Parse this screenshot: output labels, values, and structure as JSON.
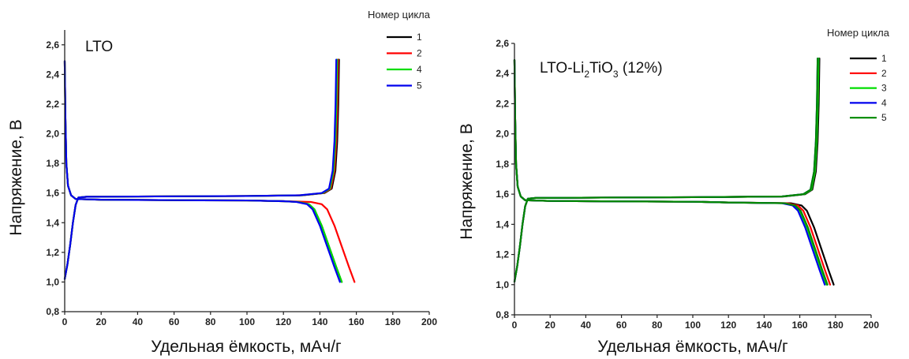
{
  "chart_data": [
    {
      "type": "line",
      "annotation": "LTO",
      "xlabel": "Удельная ёмкость, мАч/г",
      "ylabel": "Напряжение, В",
      "xlim": [
        0,
        200
      ],
      "ylim": [
        0.8,
        2.7
      ],
      "x_ticks": [
        "0",
        "20",
        "40",
        "60",
        "80",
        "100",
        "120",
        "140",
        "160",
        "180",
        "200"
      ],
      "y_ticks": [
        "0,8",
        "1,0",
        "1,2",
        "1,4",
        "1,6",
        "1,8",
        "2,0",
        "2,2",
        "2,4",
        "2,6"
      ],
      "legend_title": "Номер цикла",
      "legend_position": "top-right",
      "series": [
        {
          "name": "1",
          "color": "#000000",
          "discharge_end": 152,
          "charge_end": 150.5
        },
        {
          "name": "2",
          "color": "#ff0000",
          "discharge_end": 159,
          "charge_end": 150
        },
        {
          "name": "4",
          "color": "#00dd00",
          "discharge_end": 152,
          "charge_end": 149.5
        },
        {
          "name": "5",
          "color": "#0000ee",
          "discharge_end": 151,
          "charge_end": 149
        }
      ]
    },
    {
      "type": "line",
      "annotation_parts": [
        "LTO-Li",
        "2",
        "TiO",
        "3",
        " (12%)"
      ],
      "xlabel": "Удельная ёмкость, мАч/г",
      "ylabel": "Напряжение, В",
      "xlim": [
        0,
        200
      ],
      "ylim": [
        0.8,
        2.6
      ],
      "x_ticks": [
        "0",
        "20",
        "40",
        "60",
        "80",
        "100",
        "120",
        "140",
        "160",
        "180",
        "200"
      ],
      "y_ticks": [
        "0,8",
        "1,0",
        "1,2",
        "1,4",
        "1,6",
        "1,8",
        "2,0",
        "2,2",
        "2,4",
        "2,6"
      ],
      "legend_title": "Номер цикла",
      "legend_position": "top-right",
      "series": [
        {
          "name": "1",
          "color": "#000000",
          "discharge_end": 179,
          "charge_end": 171
        },
        {
          "name": "2",
          "color": "#ff0000",
          "discharge_end": 177,
          "charge_end": 170.5
        },
        {
          "name": "3",
          "color": "#00dd00",
          "discharge_end": 175,
          "charge_end": 170.5
        },
        {
          "name": "4",
          "color": "#0000ee",
          "discharge_end": 174,
          "charge_end": 170
        },
        {
          "name": "5",
          "color": "#008800",
          "discharge_end": 175.5,
          "charge_end": 170
        }
      ]
    }
  ]
}
